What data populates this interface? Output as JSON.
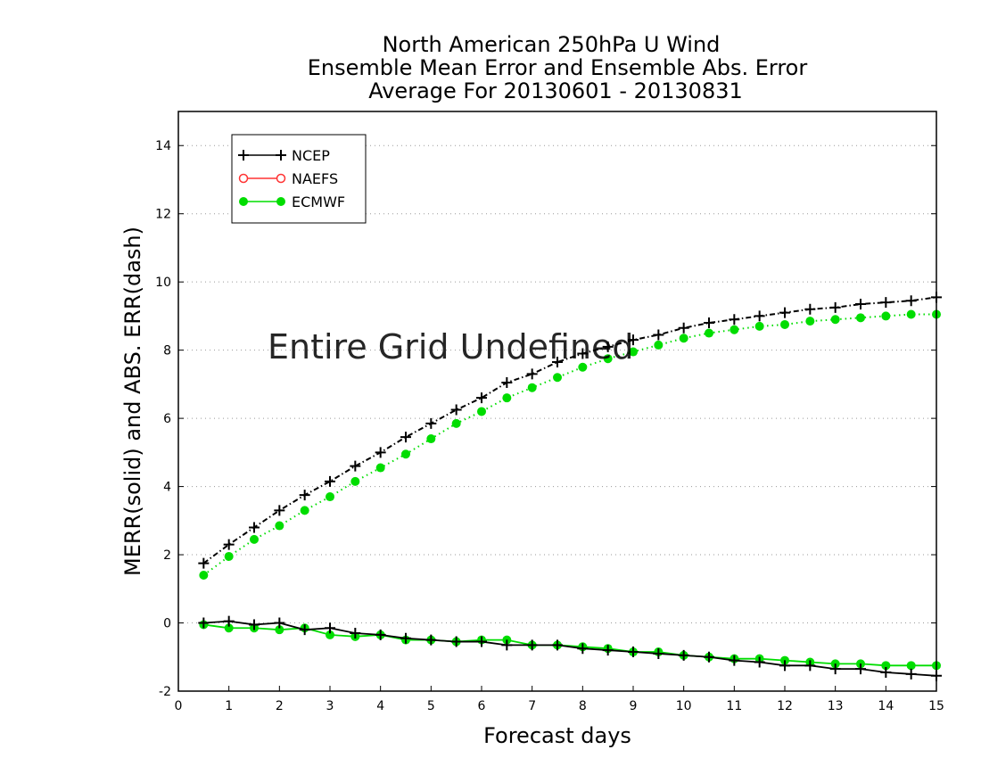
{
  "chart_data": {
    "type": "line",
    "title": [
      "North American 250hPa U Wind",
      "Ensemble Mean Error and Ensemble Abs. Error",
      "Average For 20130601 - 20130831"
    ],
    "xlabel": "Forecast days",
    "ylabel": "MERR(solid) and ABS. ERR(dash)",
    "xlim": [
      0,
      15
    ],
    "ylim": [
      -2,
      15
    ],
    "xticks": [
      0,
      1,
      2,
      3,
      4,
      5,
      6,
      7,
      8,
      9,
      10,
      11,
      12,
      13,
      14,
      15
    ],
    "yticks": [
      -2,
      0,
      2,
      4,
      6,
      8,
      10,
      12,
      14
    ],
    "grid": "horizontal-dotted",
    "legend_position": "top-left",
    "annotation": "Entire Grid Undefined",
    "x": [
      0.5,
      1,
      1.5,
      2,
      2.5,
      3,
      3.5,
      4,
      4.5,
      5,
      5.5,
      6,
      6.5,
      7,
      7.5,
      8,
      8.5,
      9,
      9.5,
      10,
      10.5,
      11,
      11.5,
      12,
      12.5,
      13,
      13.5,
      14,
      14.5,
      15
    ],
    "series": [
      {
        "name": "NCEP",
        "color": "#000000",
        "marker": "plus",
        "merr": [
          0.0,
          0.05,
          -0.05,
          0.0,
          -0.2,
          -0.15,
          -0.3,
          -0.35,
          -0.45,
          -0.5,
          -0.55,
          -0.55,
          -0.65,
          -0.65,
          -0.65,
          -0.75,
          -0.8,
          -0.85,
          -0.9,
          -0.95,
          -1.0,
          -1.1,
          -1.15,
          -1.25,
          -1.25,
          -1.35,
          -1.35,
          -1.45,
          -1.5,
          -1.55
        ],
        "abs_err": [
          1.75,
          2.3,
          2.8,
          3.3,
          3.75,
          4.15,
          4.6,
          5.0,
          5.45,
          5.85,
          6.25,
          6.6,
          7.05,
          7.3,
          7.65,
          7.9,
          8.1,
          8.3,
          8.45,
          8.65,
          8.8,
          8.9,
          9.0,
          9.1,
          9.2,
          9.25,
          9.35,
          9.4,
          9.45,
          9.55
        ]
      },
      {
        "name": "NAEFS",
        "color": "#ff3333",
        "marker": "open-circle",
        "merr": [],
        "abs_err": []
      },
      {
        "name": "ECMWF",
        "color": "#00dd00",
        "marker": "filled-circle",
        "merr": [
          -0.05,
          -0.15,
          -0.15,
          -0.2,
          -0.15,
          -0.35,
          -0.4,
          -0.35,
          -0.5,
          -0.5,
          -0.55,
          -0.5,
          -0.5,
          -0.65,
          -0.65,
          -0.7,
          -0.75,
          -0.85,
          -0.85,
          -0.95,
          -1.0,
          -1.05,
          -1.05,
          -1.1,
          -1.15,
          -1.2,
          -1.2,
          -1.25,
          -1.25,
          -1.25
        ],
        "abs_err": [
          1.4,
          1.95,
          2.45,
          2.85,
          3.3,
          3.7,
          4.15,
          4.55,
          4.95,
          5.4,
          5.85,
          6.2,
          6.6,
          6.9,
          7.2,
          7.5,
          7.75,
          7.95,
          8.15,
          8.35,
          8.5,
          8.6,
          8.7,
          8.75,
          8.85,
          8.9,
          8.95,
          9.0,
          9.05,
          9.05
        ]
      }
    ]
  }
}
